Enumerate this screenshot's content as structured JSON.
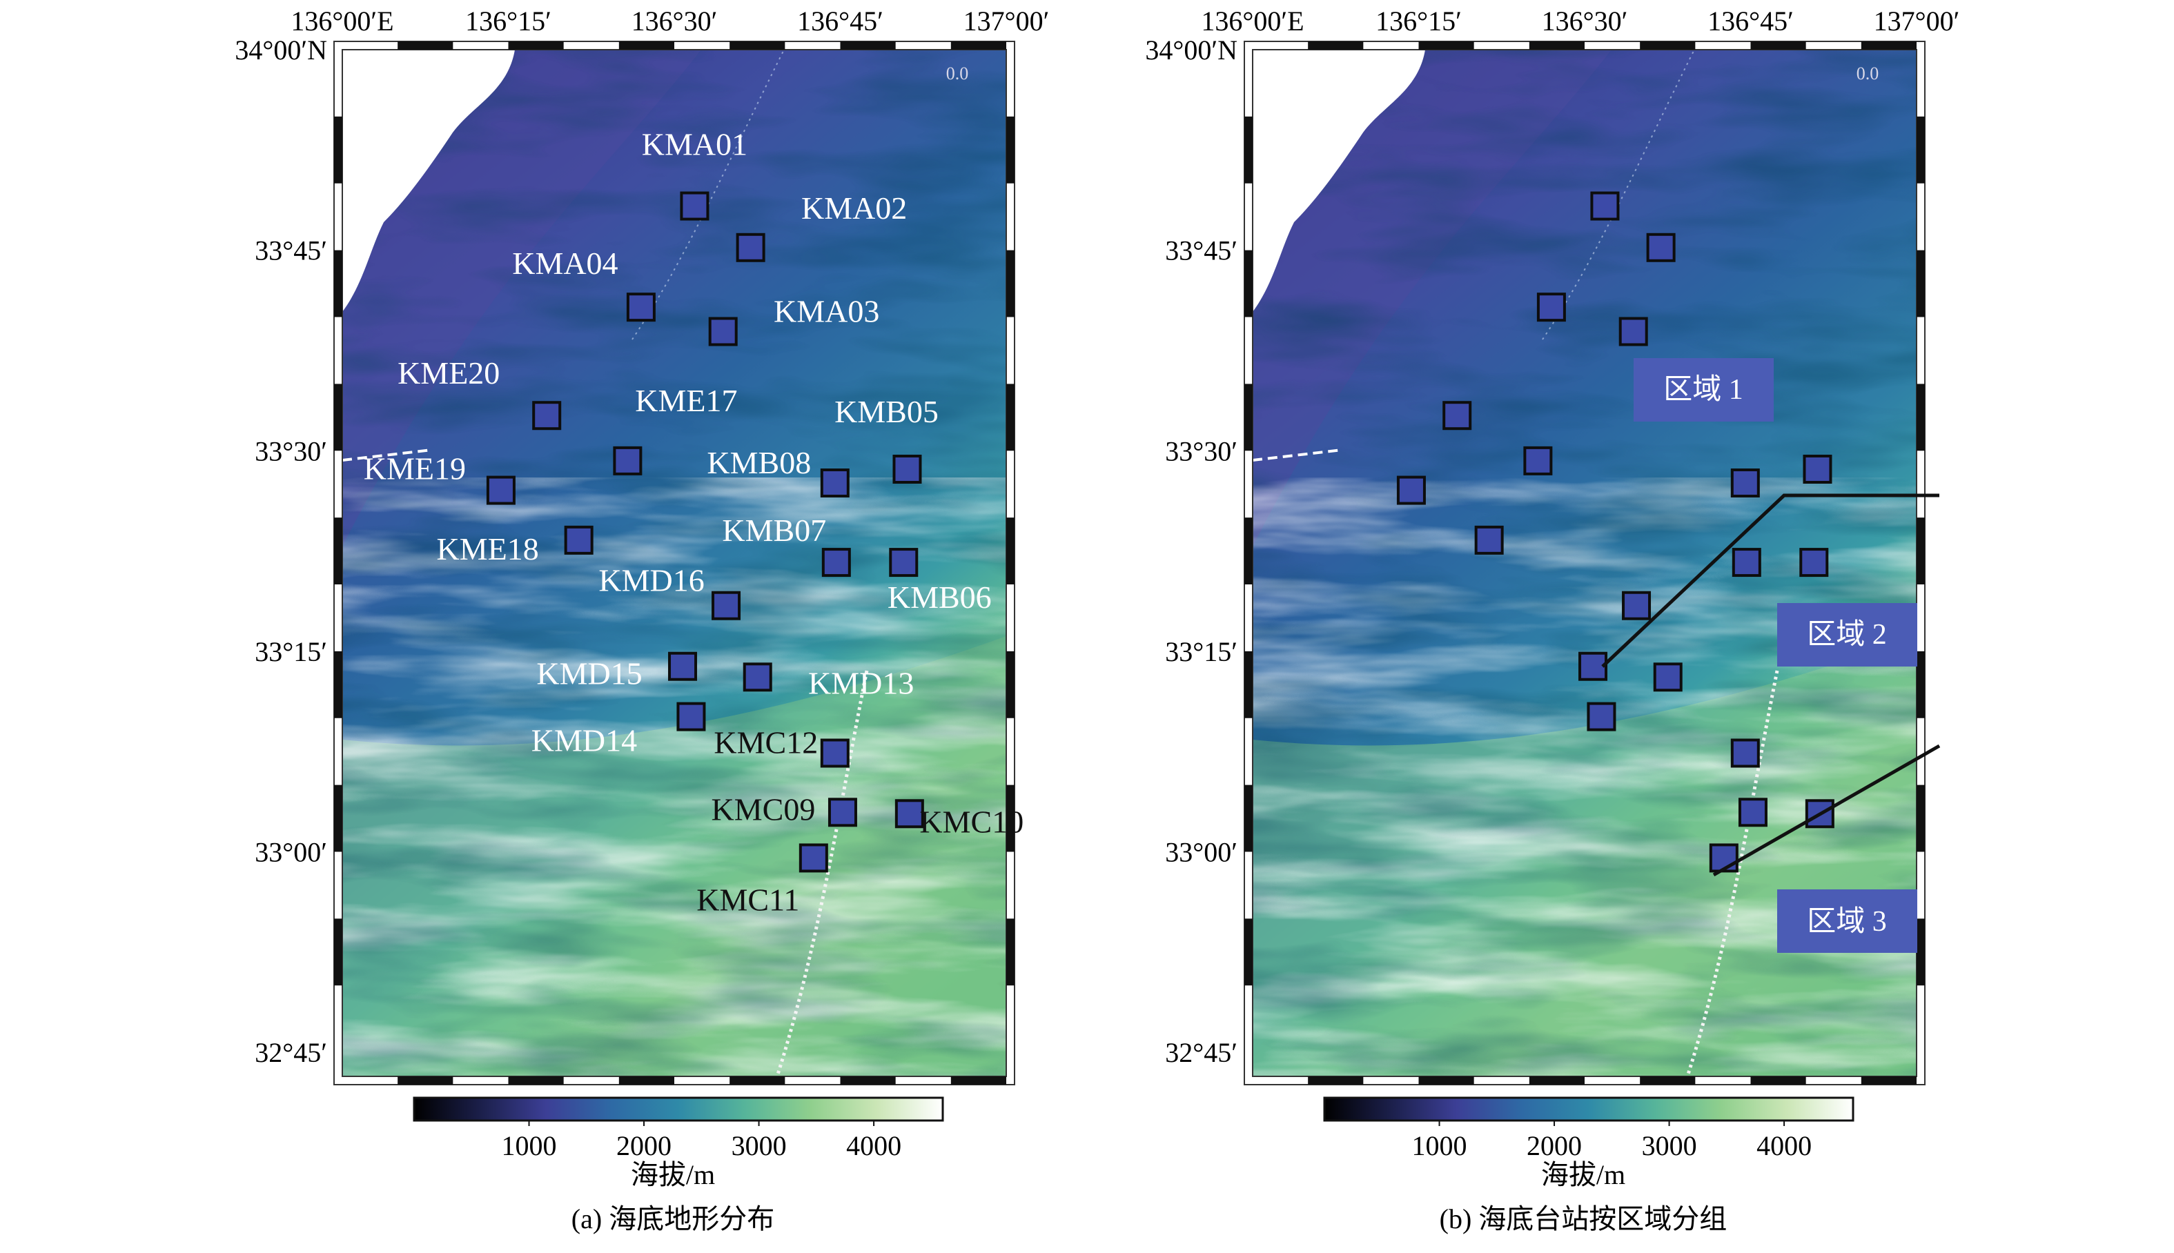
{
  "figure": {
    "panels": [
      {
        "id": "a",
        "caption": "(a) 海底地形分布",
        "x_ticks": [
          "136°00′E",
          "136°15′",
          "136°30′",
          "136°45′",
          "137°00′"
        ],
        "y_ticks": [
          "34°00′N",
          "33°45′",
          "33°30′",
          "33°15′",
          "33°00′",
          "32°45′"
        ],
        "corner_mark": "0.0",
        "stations": [
          {
            "label": "KMA01",
            "lon": 136.5306,
            "lat": 33.8051
          },
          {
            "label": "KMA02",
            "lon": 136.615,
            "lat": 33.7533
          },
          {
            "label": "KMA04",
            "lon": 136.45,
            "lat": 33.679
          },
          {
            "label": "KMA03",
            "lon": 136.5735,
            "lat": 33.6486
          },
          {
            "label": "KME20",
            "lon": 136.3079,
            "lat": 33.5439
          },
          {
            "label": "KME17",
            "lon": 136.4297,
            "lat": 33.4874
          },
          {
            "label": "KMB05",
            "lon": 136.8508,
            "lat": 33.477
          },
          {
            "label": "KMB08",
            "lon": 136.742,
            "lat": 33.4598
          },
          {
            "label": "KME19",
            "lon": 136.239,
            "lat": 33.4507
          },
          {
            "label": "KME18",
            "lon": 136.3562,
            "lat": 33.3885
          },
          {
            "label": "KMB07",
            "lon": 136.7441,
            "lat": 33.3608
          },
          {
            "label": "KMB06",
            "lon": 136.8454,
            "lat": 33.3608
          },
          {
            "label": "KMD16",
            "lon": 136.578,
            "lat": 33.3069
          },
          {
            "label": "KMD15",
            "lon": 136.5125,
            "lat": 33.2312
          },
          {
            "label": "KMD13",
            "lon": 136.6255,
            "lat": 33.2178
          },
          {
            "label": "KMD14",
            "lon": 136.5254,
            "lat": 33.1685
          },
          {
            "label": "KMC12",
            "lon": 136.742,
            "lat": 33.123
          },
          {
            "label": "KMC09",
            "lon": 136.7536,
            "lat": 33.0492
          },
          {
            "label": "KMC10",
            "lon": 136.8543,
            "lat": 33.0475
          },
          {
            "label": "KMC11",
            "lon": 136.7098,
            "lat": 32.9923
          }
        ]
      },
      {
        "id": "b",
        "caption": "(b) 海底台站按区域分组",
        "x_ticks": [
          "136°00′E",
          "136°15′",
          "136°30′",
          "136°45′",
          "137°00′"
        ],
        "y_ticks": [
          "34°00′N",
          "33°45′",
          "33°30′",
          "33°15′",
          "33°00′",
          "32°45′"
        ],
        "corner_mark": "0.0",
        "regions": [
          "区域 1",
          "区域 2",
          "区域 3"
        ]
      }
    ],
    "colorbar": {
      "ticks": [
        "1000",
        "2000",
        "3000",
        "4000"
      ],
      "label": "海拔/m",
      "colors": [
        "#000000",
        "#1b1f4a",
        "#3c3f96",
        "#2e6aa5",
        "#2f8aa8",
        "#56b49a",
        "#8fcf8d",
        "#cbe6b6",
        "#ffffff"
      ]
    }
  }
}
